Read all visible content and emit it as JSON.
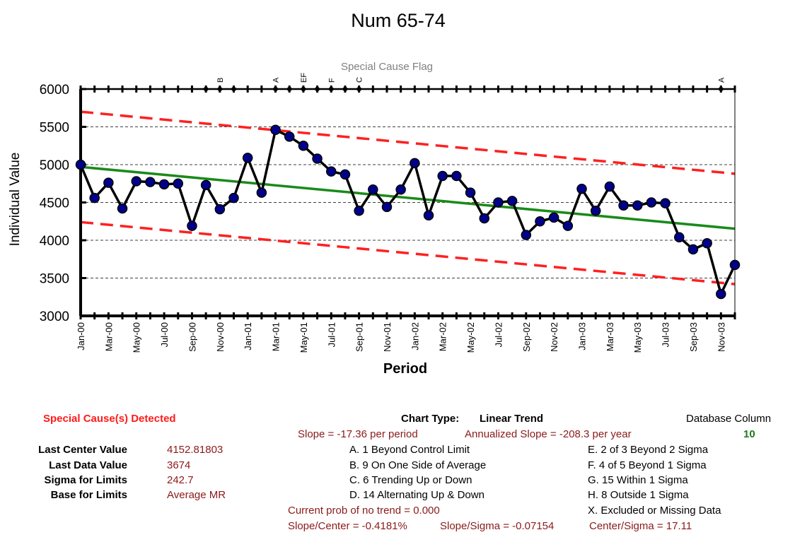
{
  "chart_data": {
    "type": "line",
    "title": "Num 65-74",
    "xlabel": "Period",
    "ylabel": "Individual Value",
    "flag_title": "Special Cause Flag",
    "ylim": [
      3000,
      6000
    ],
    "yticks": [
      3000,
      3500,
      4000,
      4500,
      5000,
      5500,
      6000
    ],
    "xtick_labels": [
      "Jan-00",
      "Mar-00",
      "May-00",
      "Jul-00",
      "Sep-00",
      "Nov-00",
      "Jan-01",
      "Mar-01",
      "May-01",
      "Jul-01",
      "Sep-01",
      "Nov-01",
      "Jan-02",
      "Mar-02",
      "May-02",
      "Jul-02",
      "Sep-02",
      "Nov-02",
      "Jan-03",
      "Mar-03",
      "May-03",
      "Jul-03",
      "Sep-03",
      "Nov-03"
    ],
    "series": [
      {
        "values": [
          5000,
          4560,
          4760,
          4420,
          4780,
          4770,
          4740,
          4750,
          4190,
          4730,
          4410,
          4560,
          5090,
          4630,
          5460,
          5370,
          5250,
          5080,
          4910,
          4870,
          4390,
          4670,
          4440,
          4670,
          5020,
          4330,
          4850,
          4850,
          4630,
          4290,
          4500,
          4520,
          4070,
          4250,
          4300,
          4190,
          4680,
          4390,
          4710,
          4460,
          4460,
          4500,
          4490,
          4040,
          3880,
          3960,
          3290,
          3674
        ]
      }
    ],
    "center_line": {
      "start": 4970,
      "end": 4152.81803
    },
    "ucl_line": {
      "start": 5700,
      "end": 4880
    },
    "lcl_line": {
      "start": 4240,
      "end": 3420
    },
    "flag_points": [
      9,
      10,
      11,
      14,
      15,
      16,
      17,
      18,
      19,
      20,
      46
    ],
    "flag_letters": [
      {
        "index": 10,
        "text": "B"
      },
      {
        "index": 14,
        "text": "A"
      },
      {
        "index": 16,
        "text": "EF"
      },
      {
        "index": 18,
        "text": "F"
      },
      {
        "index": 20,
        "text": "C"
      },
      {
        "index": 46,
        "text": "A"
      }
    ],
    "colors": {
      "data_line": "#000000",
      "marker_fill": "#00008b",
      "center_line": "#1a8a1a",
      "limit_lines": "#ff2020",
      "grid": "#000000"
    }
  },
  "panel": {
    "special_cause_detected": "Special Cause(s) Detected",
    "stats": [
      {
        "label": "Last Center Value",
        "value": "4152.81803"
      },
      {
        "label": "Last Data Value",
        "value": "3674"
      },
      {
        "label": "Sigma for Limits",
        "value": "242.7"
      },
      {
        "label": "Base for Limits",
        "value": "Average MR"
      }
    ],
    "chart_type_label": "Chart Type:",
    "chart_type_value": "Linear Trend",
    "slope_text": "Slope = -17.36 per period",
    "annualized_text": "Annualized Slope = -208.3 per year",
    "database_column_label": "Database Column",
    "database_column_value": "10",
    "rules_left": [
      "A.  1 Beyond Control Limit",
      "B.  9 On One Side of Average",
      "C.  6 Trending Up or Down",
      "D.  14 Alternating  Up & Down"
    ],
    "rules_right": [
      "E.   2 of 3 Beyond 2 Sigma",
      "F.   4 of 5 Beyond 1 Sigma",
      "G.   15 Within 1 Sigma",
      "H.   8 Outside 1 Sigma",
      "X.   Excluded or Missing Data"
    ],
    "prob_text": "Current prob of no trend = 0.000",
    "slope_center_text": "Slope/Center = -0.4181%",
    "slope_sigma_text": "Slope/Sigma = -0.07154",
    "center_sigma_text": "Center/Sigma = 17.11"
  }
}
